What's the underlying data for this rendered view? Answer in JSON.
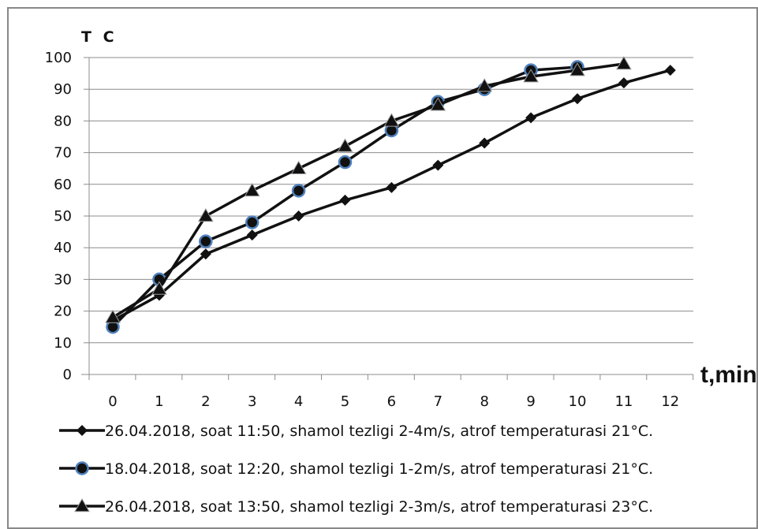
{
  "chart_data": {
    "type": "line",
    "xlabel": "t,min",
    "ylabel": "T C",
    "ylim": [
      0,
      100
    ],
    "yticks": [
      0,
      10,
      20,
      30,
      40,
      50,
      60,
      70,
      80,
      90,
      100
    ],
    "xticks": [
      0,
      1,
      2,
      3,
      4,
      5,
      6,
      7,
      8,
      9,
      10,
      11,
      12
    ],
    "grid": "horizontal",
    "legend_position": "bottom",
    "series": [
      {
        "name": "26.04.2018, soat 11:50, shamol tezligi 2-4m/s, atrof temperaturasi 21°C.",
        "marker": "diamond",
        "color": "#111111",
        "x": [
          0,
          1,
          2,
          3,
          4,
          5,
          6,
          7,
          8,
          9,
          10,
          11,
          12
        ],
        "y": [
          17,
          25,
          38,
          44,
          50,
          55,
          59,
          66,
          73,
          81,
          87,
          92,
          96
        ]
      },
      {
        "name": "18.04.2018, soat 12:20, shamol tezligi 1-2m/s, atrof temperaturasi 21°C.",
        "marker": "circle",
        "color": "#111111",
        "marker_edge": "#4f81bd",
        "x": [
          0,
          1,
          2,
          3,
          4,
          5,
          6,
          7,
          8,
          9,
          10
        ],
        "y": [
          15,
          30,
          42,
          48,
          58,
          67,
          77,
          86,
          90,
          96,
          97
        ]
      },
      {
        "name": "26.04.2018, soat 13:50, shamol tezligi 2-3m/s, atrof temperaturasi 23°C.",
        "marker": "triangle",
        "color": "#111111",
        "x": [
          0,
          1,
          2,
          3,
          4,
          5,
          6,
          7,
          8,
          9,
          10,
          11
        ],
        "y": [
          18,
          27,
          50,
          58,
          65,
          72,
          80,
          85,
          91,
          94,
          96,
          98
        ]
      }
    ]
  }
}
